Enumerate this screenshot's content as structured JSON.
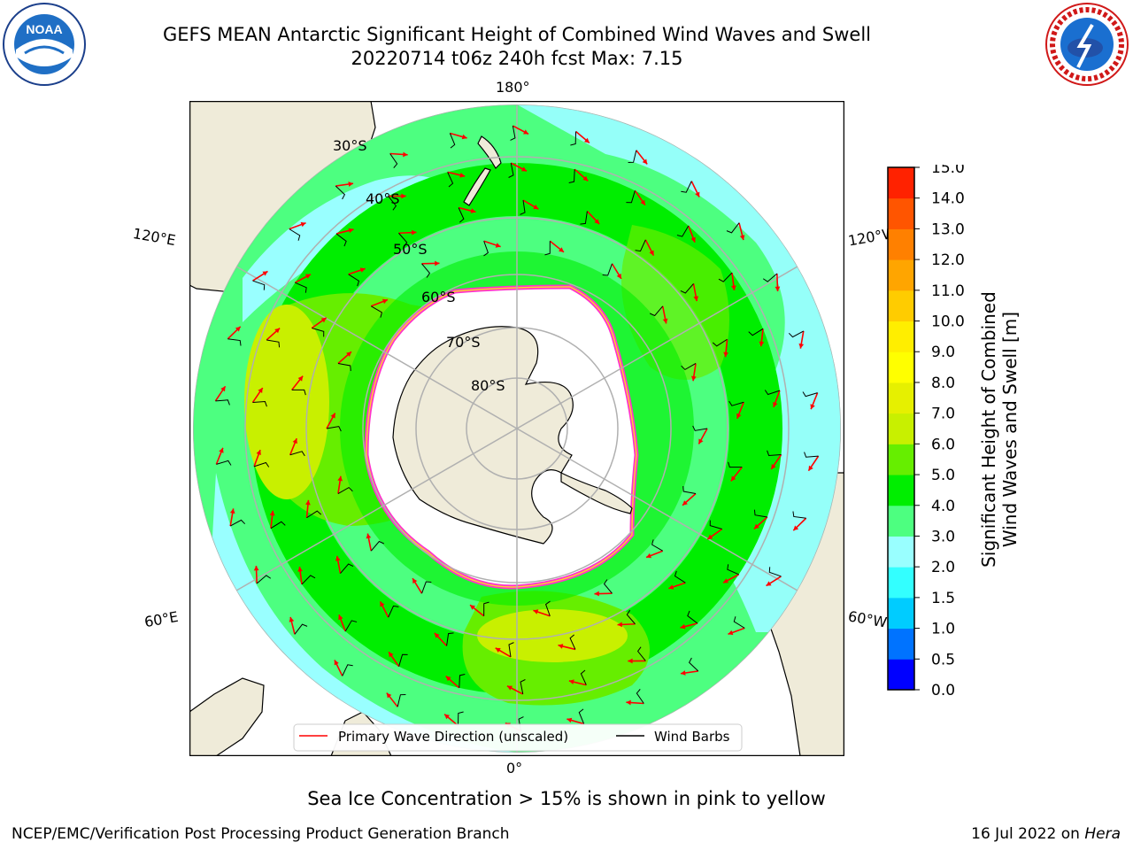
{
  "header": {
    "title_line1": "GEFS MEAN Antarctic Significant Height of Combined Wind Waves and Swell",
    "title_line2": "20220714 t06z 240h fcst   Max: 7.15"
  },
  "logos": {
    "left": "NOAA",
    "right": "NATIONAL WEATHER SERVICE"
  },
  "map": {
    "projection": "south-polar-stereographic",
    "lon_labels": {
      "top": "180°",
      "bottom": "0°",
      "upper_left": "120°E",
      "upper_right": "120°W",
      "lower_left": "60°E",
      "lower_right": "60°W"
    },
    "lat_labels": [
      "30°S",
      "40°S",
      "50°S",
      "60°S",
      "70°S",
      "80°S"
    ],
    "legend": {
      "wave_direction": "Primary Wave Direction (unscaled)",
      "wind_barbs": "Wind Barbs"
    }
  },
  "colorbar": {
    "label": "Significant Height of Combined Wind Waves and Swell [m]",
    "label_line1": "Significant Height of Combined",
    "label_line2": "Wind Waves and Swell [m]",
    "ticks": [
      "0.0",
      "0.5",
      "1.0",
      "1.5",
      "2.0",
      "3.0",
      "4.0",
      "5.0",
      "6.0",
      "7.0",
      "8.0",
      "9.0",
      "10.0",
      "11.0",
      "12.0",
      "13.0",
      "14.0",
      "15.0"
    ],
    "colors": [
      "#0000ff",
      "#0073ff",
      "#00ccff",
      "#33ffff",
      "#99ffff",
      "#4dff80",
      "#00ee00",
      "#66ee00",
      "#c8f000",
      "#e6f000",
      "#ffff00",
      "#ffee00",
      "#ffcc00",
      "#ffa500",
      "#ff8000",
      "#ff5500",
      "#ff2200"
    ]
  },
  "footer": {
    "ice_note": "Sea Ice Concentration > 15% is shown in pink to yellow",
    "credit": "NCEP/EMC/Verification Post Processing Product Generation Branch",
    "date": "16 Jul 2022 on",
    "host": "Hera"
  }
}
